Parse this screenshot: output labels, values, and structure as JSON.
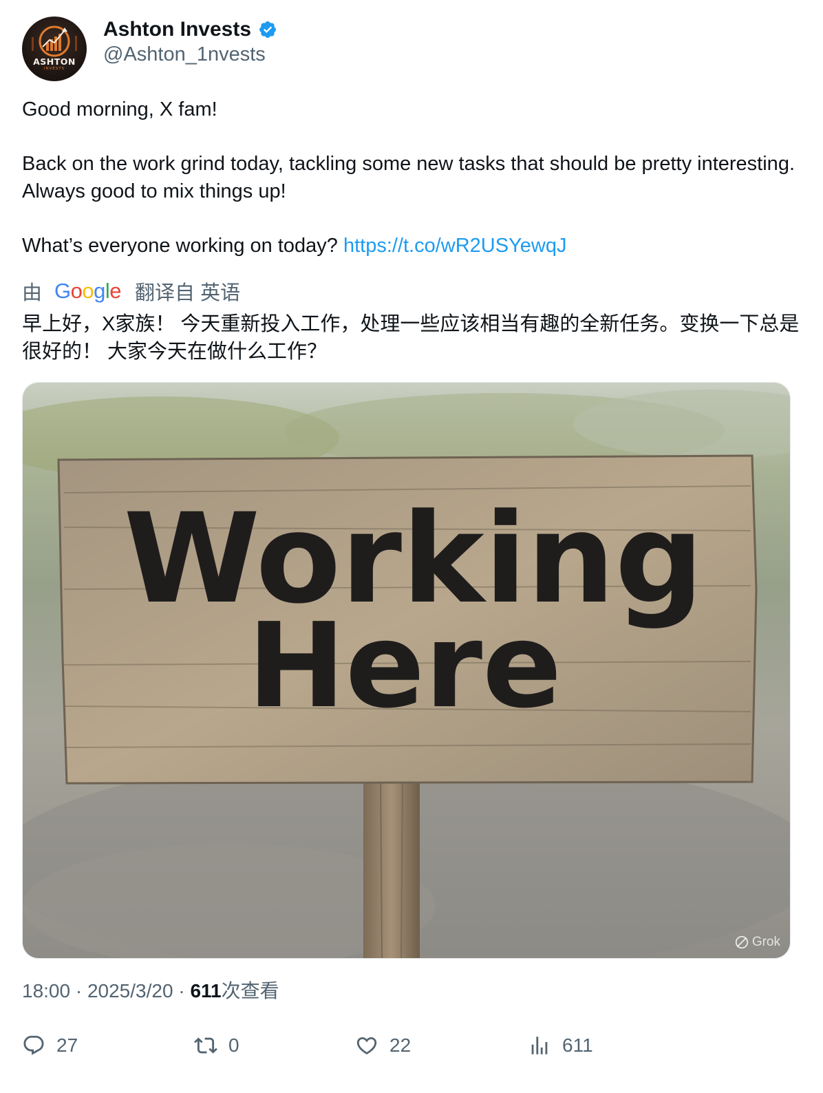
{
  "author": {
    "display_name": "Ashton Invests",
    "handle": "@Ashton_1nvests",
    "logo_word": "ASHTON",
    "logo_sub": "INVESTS",
    "verified_icon": "verified-badge-icon"
  },
  "tweet": {
    "line1": "Good morning, X fam!",
    "line2": "Back on the work grind today, tackling some new tasks that should be pretty interesting. Always good to mix things up!",
    "line3": "What’s everyone working on today?",
    "link": "https://t.co/wR2USYewqJ"
  },
  "translation": {
    "prefix": "由",
    "provider": "Google",
    "suffix": "翻译自 英语",
    "text": "早上好，X家族！ 今天重新投入工作，处理一些应该相当有趣的全新任务。变换一下总是很好的！ 大家今天在做什么工作？"
  },
  "media": {
    "sign_line1": "Working",
    "sign_line2": "Here",
    "watermark": "Grok"
  },
  "meta": {
    "time": "18:00",
    "sep": "·",
    "date": "2025/3/20",
    "views_count": "611",
    "views_label": "次查看"
  },
  "actions": {
    "replies": "27",
    "reposts": "0",
    "likes": "22",
    "views": "611"
  },
  "colors": {
    "link": "#1d9bf0",
    "muted": "#536471",
    "text": "#0f1419"
  }
}
